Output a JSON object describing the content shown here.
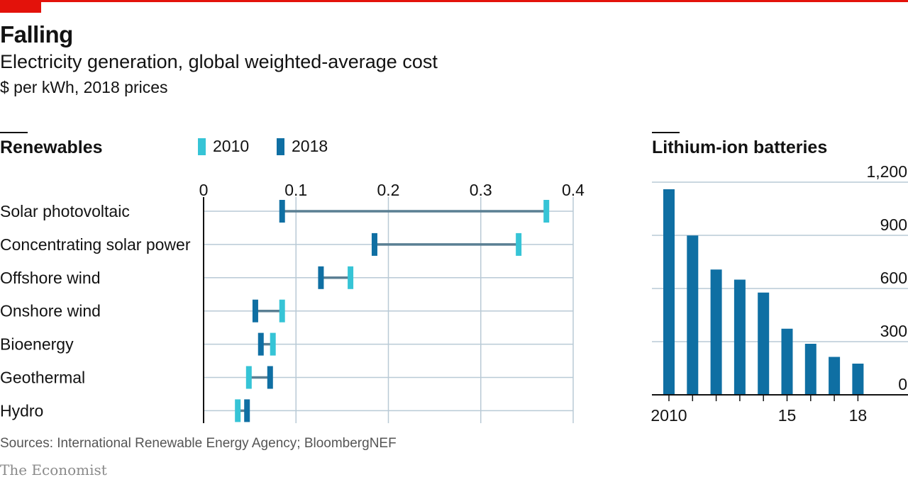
{
  "header": {
    "title": "Falling",
    "subtitle": "Electricity generation, global weighted-average cost",
    "unit": "$ per kWh, 2018 prices"
  },
  "colors": {
    "accent_red": "#e3120b",
    "light_series": "#36c4d6",
    "dark_series": "#0f6fa3",
    "connector": "#5a7f93",
    "grid": "#b9cad6"
  },
  "chart_data": [
    {
      "type": "dumbbell",
      "title": "Renewables",
      "legend": [
        "2010",
        "2018"
      ],
      "legend_placement": "top",
      "xlim": [
        0,
        0.4
      ],
      "x_ticks": [
        0,
        0.1,
        0.2,
        0.3,
        0.4
      ],
      "x_tick_labels": [
        "0",
        "0.1",
        "0.2",
        "0.3",
        "0.4"
      ],
      "grid": true,
      "categories": [
        "Solar photovoltaic",
        "Concentrating solar power",
        "Offshore wind",
        "Onshore wind",
        "Bioenergy",
        "Geothermal",
        "Hydro"
      ],
      "series": [
        {
          "name": "2010",
          "values": [
            0.371,
            0.341,
            0.159,
            0.085,
            0.075,
            0.049,
            0.037
          ]
        },
        {
          "name": "2018",
          "values": [
            0.085,
            0.185,
            0.127,
            0.056,
            0.062,
            0.072,
            0.047
          ]
        }
      ]
    },
    {
      "type": "bar",
      "title": "Lithium-ion batteries",
      "x": [
        2010,
        2011,
        2012,
        2013,
        2014,
        2015,
        2016,
        2017,
        2018
      ],
      "x_tick_labels": [
        "2010",
        "",
        "",
        "",
        "",
        "15",
        "",
        "",
        "18"
      ],
      "values": [
        1160,
        899,
        707,
        650,
        577,
        373,
        288,
        214,
        176
      ],
      "ylim": [
        0,
        1200
      ],
      "y_ticks": [
        0,
        300,
        600,
        900,
        1200
      ],
      "y_tick_labels": [
        "0",
        "300",
        "600",
        "900",
        "1,200"
      ],
      "y_axis_side": "right",
      "grid": true
    }
  ],
  "footer": {
    "source": "Sources: International Renewable Energy Agency; BloombergNEF",
    "brand": "The Economist"
  }
}
